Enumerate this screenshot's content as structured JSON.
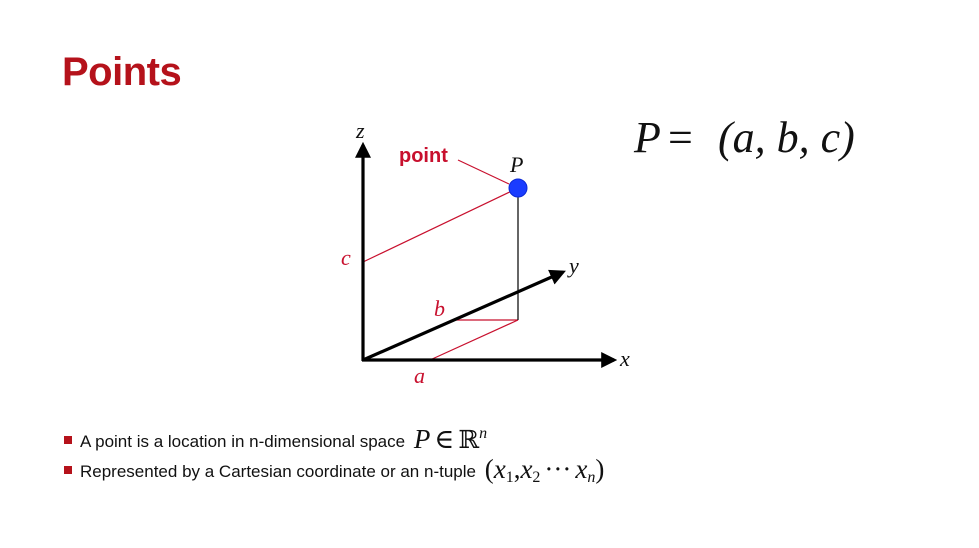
{
  "slide": {
    "title": "Points"
  },
  "diagram": {
    "axis_x_label": "x",
    "axis_y_label": "y",
    "axis_z_label": "z",
    "coord_a_label": "a",
    "coord_b_label": "b",
    "coord_c_label": "c",
    "point_label": "P",
    "callout_label": "point",
    "equation": {
      "lhs": "P",
      "eq": "=",
      "rhs": "(a, b, c)"
    },
    "colors": {
      "title": "#b5121b",
      "projection_lines": "#c8102e",
      "point_fill": "#1a3cff",
      "axis": "#000000"
    }
  },
  "bullets": [
    {
      "text": "A point is a location in n-dimensional space",
      "math": {
        "var": "P",
        "op": "∈",
        "set": "ℝ",
        "sup": "n"
      }
    },
    {
      "text": "Represented by a Cartesian coordinate or an n-tuple",
      "math": {
        "open": "(",
        "x1": "x",
        "s1": "1",
        "comma": ",",
        "x2": "x",
        "s2": "2",
        "dots": "···",
        "xn": "x",
        "sn": "n",
        "close": ")"
      }
    }
  ]
}
